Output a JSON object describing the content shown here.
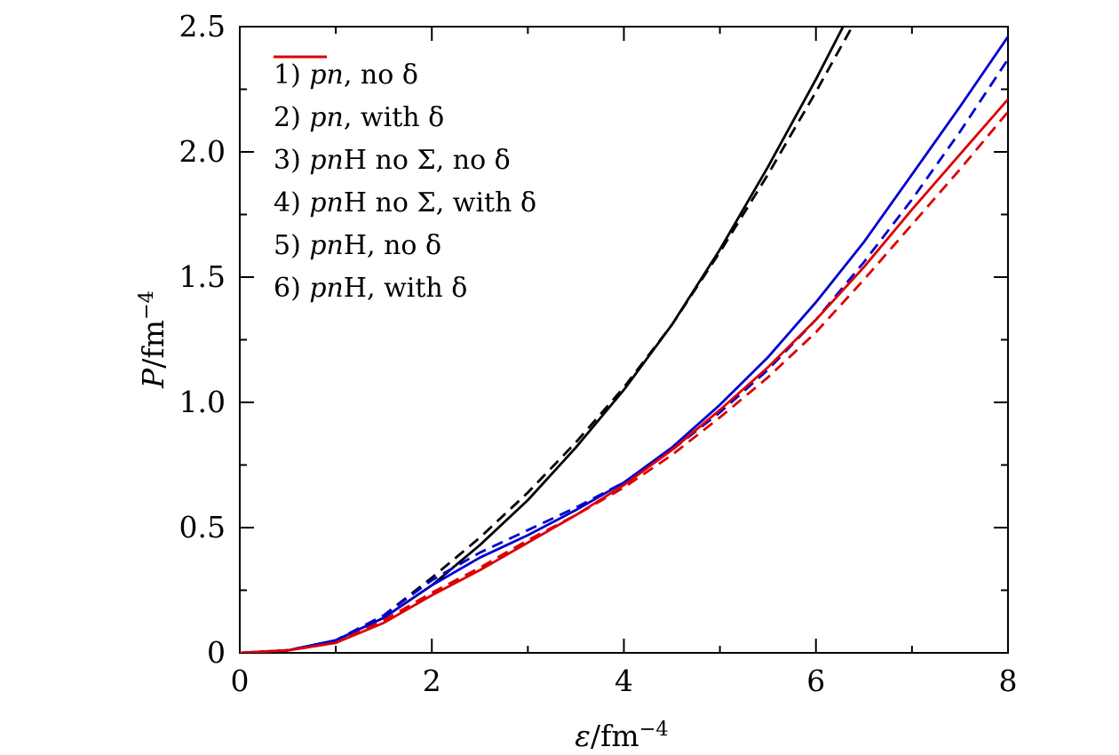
{
  "figure": {
    "background": "#ffffff",
    "frame_color": "#000000"
  },
  "axes": {
    "x": {
      "symbol": "ε",
      "unit": "/fm",
      "exponent": "−4",
      "tick_values": [
        0,
        2,
        4,
        6,
        8
      ],
      "tick_labels": [
        "0",
        "2",
        "4",
        "6",
        "8"
      ],
      "minor_ticks": [
        1,
        3,
        5,
        7
      ]
    },
    "y": {
      "symbol": "P",
      "unit": "/fm",
      "exponent": "−4",
      "tick_values": [
        0,
        0.5,
        1.0,
        1.5,
        2.0,
        2.5
      ],
      "tick_labels": [
        "0",
        "0.5",
        "1.0",
        "1.5",
        "2.0",
        "2.5"
      ],
      "minor_ticks": [
        0.25,
        0.75,
        1.25,
        1.75,
        2.25
      ]
    }
  },
  "legend": {
    "items": [
      {
        "color": "#000000",
        "style": "solid",
        "parts": [
          {
            "text": "1) ",
            "italic": false
          },
          {
            "text": "pn",
            "italic": true
          },
          {
            "text": ", no δ",
            "italic": false
          }
        ]
      },
      {
        "color": "#000000",
        "style": "dashed",
        "parts": [
          {
            "text": "2) ",
            "italic": false
          },
          {
            "text": "pn",
            "italic": true
          },
          {
            "text": ", with δ",
            "italic": false
          }
        ]
      },
      {
        "color": "#0000cd",
        "style": "solid",
        "parts": [
          {
            "text": "3) ",
            "italic": false
          },
          {
            "text": "pn",
            "italic": true
          },
          {
            "text": "H no Σ, no δ",
            "italic": false
          }
        ]
      },
      {
        "color": "#0000cd",
        "style": "dashed",
        "parts": [
          {
            "text": "4) ",
            "italic": false
          },
          {
            "text": "pn",
            "italic": true
          },
          {
            "text": "H no Σ, with δ",
            "italic": false
          }
        ]
      },
      {
        "color": "#dd0000",
        "style": "solid",
        "parts": [
          {
            "text": "5) ",
            "italic": false
          },
          {
            "text": "pn",
            "italic": true
          },
          {
            "text": "H, no δ",
            "italic": false
          }
        ]
      },
      {
        "color": "#dd0000",
        "style": "dashed",
        "parts": [
          {
            "text": "6) ",
            "italic": false
          },
          {
            "text": "pn",
            "italic": true
          },
          {
            "text": "H, with δ",
            "italic": false
          }
        ]
      }
    ]
  },
  "chart_data": {
    "type": "line",
    "title": "",
    "xlabel": "ε/fm⁻⁴",
    "ylabel": "P/fm⁻⁴",
    "xlim": [
      0,
      8
    ],
    "ylim": [
      0,
      2.5
    ],
    "grid": false,
    "legend_position": "top-left",
    "series": [
      {
        "name": "1) pn, no δ",
        "color": "#000000",
        "style": "solid",
        "points": [
          [
            0,
            0
          ],
          [
            0.5,
            0.01
          ],
          [
            1,
            0.05
          ],
          [
            1.5,
            0.14
          ],
          [
            2,
            0.27
          ],
          [
            2.5,
            0.43
          ],
          [
            3,
            0.61
          ],
          [
            3.5,
            0.82
          ],
          [
            4,
            1.05
          ],
          [
            4.5,
            1.31
          ],
          [
            5,
            1.61
          ],
          [
            5.5,
            1.94
          ],
          [
            6,
            2.29
          ],
          [
            6.35,
            2.55
          ]
        ]
      },
      {
        "name": "2) pn, with δ",
        "color": "#000000",
        "style": "dashed",
        "points": [
          [
            0,
            0
          ],
          [
            0.5,
            0.01
          ],
          [
            1,
            0.05
          ],
          [
            1.5,
            0.15
          ],
          [
            2,
            0.3
          ],
          [
            2.5,
            0.46
          ],
          [
            3,
            0.64
          ],
          [
            3.5,
            0.84
          ],
          [
            4,
            1.06
          ],
          [
            4.5,
            1.31
          ],
          [
            5,
            1.6
          ],
          [
            5.5,
            1.91
          ],
          [
            6,
            2.24
          ],
          [
            6.45,
            2.55
          ]
        ]
      },
      {
        "name": "3) pnH no Σ, no δ",
        "color": "#0000cd",
        "style": "solid",
        "points": [
          [
            0,
            0
          ],
          [
            0.5,
            0.01
          ],
          [
            1,
            0.05
          ],
          [
            1.5,
            0.14
          ],
          [
            2,
            0.27
          ],
          [
            2.5,
            0.38
          ],
          [
            3,
            0.47
          ],
          [
            3.5,
            0.57
          ],
          [
            4,
            0.68
          ],
          [
            4.5,
            0.82
          ],
          [
            5,
            0.99
          ],
          [
            5.5,
            1.18
          ],
          [
            6,
            1.4
          ],
          [
            6.5,
            1.64
          ],
          [
            7,
            1.91
          ],
          [
            7.5,
            2.18
          ],
          [
            8,
            2.46
          ]
        ]
      },
      {
        "name": "4) pnH no Σ, with δ",
        "color": "#0000cd",
        "style": "dashed",
        "points": [
          [
            0,
            0
          ],
          [
            0.5,
            0.01
          ],
          [
            1,
            0.05
          ],
          [
            1.5,
            0.15
          ],
          [
            2,
            0.29
          ],
          [
            2.5,
            0.4
          ],
          [
            3,
            0.49
          ],
          [
            3.5,
            0.58
          ],
          [
            4,
            0.68
          ],
          [
            4.5,
            0.81
          ],
          [
            5,
            0.96
          ],
          [
            5.5,
            1.13
          ],
          [
            6,
            1.33
          ],
          [
            6.5,
            1.56
          ],
          [
            7,
            1.81
          ],
          [
            7.5,
            2.08
          ],
          [
            8,
            2.37
          ]
        ]
      },
      {
        "name": "5) pnH, no δ",
        "color": "#dd0000",
        "style": "solid",
        "points": [
          [
            0,
            0
          ],
          [
            0.5,
            0.01
          ],
          [
            1,
            0.04
          ],
          [
            1.5,
            0.12
          ],
          [
            2,
            0.23
          ],
          [
            2.5,
            0.33
          ],
          [
            3,
            0.44
          ],
          [
            3.5,
            0.55
          ],
          [
            4,
            0.67
          ],
          [
            4.5,
            0.81
          ],
          [
            5,
            0.97
          ],
          [
            5.5,
            1.14
          ],
          [
            6,
            1.33
          ],
          [
            6.5,
            1.54
          ],
          [
            7,
            1.77
          ],
          [
            7.5,
            1.99
          ],
          [
            8,
            2.21
          ]
        ]
      },
      {
        "name": "6) pnH, with δ",
        "color": "#dd0000",
        "style": "dashed",
        "points": [
          [
            0,
            0
          ],
          [
            0.5,
            0.01
          ],
          [
            1,
            0.04
          ],
          [
            1.5,
            0.13
          ],
          [
            2,
            0.24
          ],
          [
            2.5,
            0.34
          ],
          [
            3,
            0.45
          ],
          [
            3.5,
            0.55
          ],
          [
            4,
            0.66
          ],
          [
            4.5,
            0.79
          ],
          [
            5,
            0.94
          ],
          [
            5.5,
            1.1
          ],
          [
            6,
            1.28
          ],
          [
            6.5,
            1.49
          ],
          [
            7,
            1.71
          ],
          [
            7.5,
            1.93
          ],
          [
            8,
            2.16
          ]
        ]
      }
    ]
  }
}
